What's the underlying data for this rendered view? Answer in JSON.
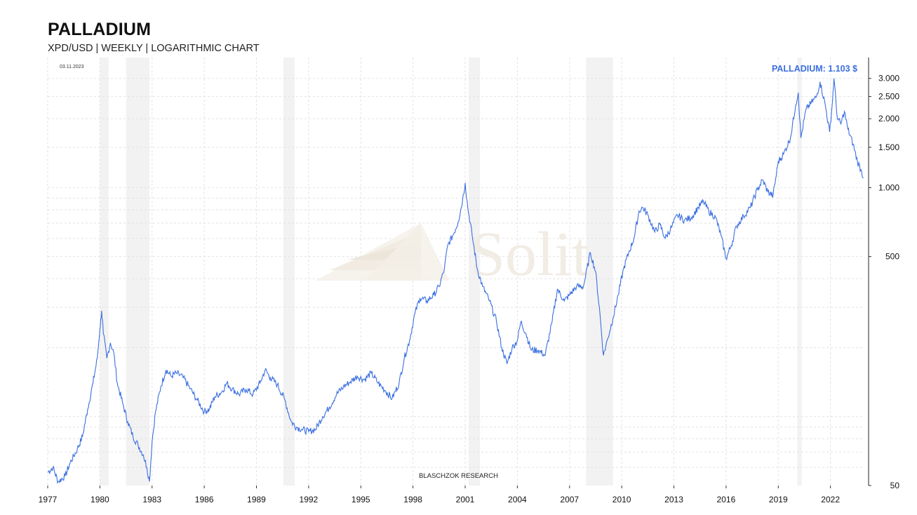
{
  "header": {
    "title": "PALLADIUM",
    "subtitle": "XPD/USD | WEEKLY | LOGARITHMIC CHART"
  },
  "date_stamp": "03.11.2023",
  "credit": "BLASCHZOK   RESEARCH",
  "watermark": "Solit",
  "colors": {
    "line": "#3b6fe0",
    "shade": "#ececec",
    "grid": "#e2e2e2"
  },
  "chart_data": {
    "type": "line",
    "scale": "log",
    "ylim": [
      50,
      3700
    ],
    "xlim": [
      1977.0,
      2023.95
    ],
    "grid": true,
    "x_ticks": [
      "1977",
      "1980",
      "1983",
      "1986",
      "1989",
      "1992",
      "1995",
      "1998",
      "2001",
      "2004",
      "2007",
      "2010",
      "2013",
      "2016",
      "2019",
      "2022"
    ],
    "y_ticks": [
      {
        "value": 3000,
        "label": "3.000"
      },
      {
        "value": 2500,
        "label": "2.500"
      },
      {
        "value": 2000,
        "label": "2.000"
      },
      {
        "value": 1500,
        "label": "1.500"
      },
      {
        "value": 1000,
        "label": "1.000"
      },
      {
        "value": 500,
        "label": "500"
      },
      {
        "value": 50,
        "label": "50"
      }
    ],
    "last_value_label": "PALLADIUM: 1.103 $",
    "recessions": [
      [
        1980.0,
        1980.5
      ],
      [
        1981.5,
        1982.85
      ],
      [
        1990.55,
        1991.2
      ],
      [
        2001.2,
        2001.85
      ],
      [
        2007.95,
        2009.5
      ],
      [
        2020.1,
        2020.35
      ]
    ],
    "series": [
      {
        "values": [
          [
            1977.0,
            57
          ],
          [
            1977.3,
            60
          ],
          [
            1977.6,
            52
          ],
          [
            1978.0,
            55
          ],
          [
            1978.3,
            63
          ],
          [
            1978.7,
            72
          ],
          [
            1979.0,
            82
          ],
          [
            1979.3,
            108
          ],
          [
            1979.6,
            140
          ],
          [
            1979.85,
            180
          ],
          [
            1980.0,
            240
          ],
          [
            1980.1,
            290
          ],
          [
            1980.2,
            230
          ],
          [
            1980.4,
            180
          ],
          [
            1980.6,
            210
          ],
          [
            1980.8,
            190
          ],
          [
            1981.0,
            140
          ],
          [
            1981.3,
            115
          ],
          [
            1981.6,
            95
          ],
          [
            1981.9,
            82
          ],
          [
            1982.2,
            75
          ],
          [
            1982.5,
            68
          ],
          [
            1982.7,
            60
          ],
          [
            1982.85,
            52
          ],
          [
            1983.0,
            78
          ],
          [
            1983.2,
            105
          ],
          [
            1983.5,
            135
          ],
          [
            1983.8,
            160
          ],
          [
            1984.1,
            150
          ],
          [
            1984.4,
            155
          ],
          [
            1984.8,
            148
          ],
          [
            1985.2,
            132
          ],
          [
            1985.6,
            118
          ],
          [
            1986.0,
            105
          ],
          [
            1986.3,
            108
          ],
          [
            1986.6,
            122
          ],
          [
            1987.0,
            128
          ],
          [
            1987.3,
            140
          ],
          [
            1987.6,
            132
          ],
          [
            1988.0,
            125
          ],
          [
            1988.4,
            132
          ],
          [
            1988.8,
            125
          ],
          [
            1989.2,
            140
          ],
          [
            1989.5,
            160
          ],
          [
            1989.8,
            148
          ],
          [
            1990.2,
            138
          ],
          [
            1990.6,
            120
          ],
          [
            1991.0,
            95
          ],
          [
            1991.3,
            90
          ],
          [
            1991.6,
            88
          ],
          [
            1992.0,
            86
          ],
          [
            1992.4,
            88
          ],
          [
            1992.8,
            100
          ],
          [
            1993.2,
            110
          ],
          [
            1993.6,
            125
          ],
          [
            1994.0,
            135
          ],
          [
            1994.4,
            142
          ],
          [
            1994.8,
            150
          ],
          [
            1995.2,
            145
          ],
          [
            1995.6,
            155
          ],
          [
            1996.0,
            140
          ],
          [
            1996.4,
            130
          ],
          [
            1996.8,
            120
          ],
          [
            1997.2,
            140
          ],
          [
            1997.5,
            180
          ],
          [
            1997.8,
            215
          ],
          [
            1998.1,
            280
          ],
          [
            1998.4,
            330
          ],
          [
            1998.8,
            320
          ],
          [
            1999.2,
            340
          ],
          [
            1999.5,
            370
          ],
          [
            1999.8,
            440
          ],
          [
            2000.0,
            560
          ],
          [
            2000.3,
            620
          ],
          [
            2000.6,
            710
          ],
          [
            2000.85,
            880
          ],
          [
            2001.0,
            1050
          ],
          [
            2001.15,
            820
          ],
          [
            2001.4,
            620
          ],
          [
            2001.7,
            440
          ],
          [
            2002.0,
            370
          ],
          [
            2002.4,
            320
          ],
          [
            2002.8,
            260
          ],
          [
            2003.1,
            200
          ],
          [
            2003.4,
            170
          ],
          [
            2003.7,
            200
          ],
          [
            2004.0,
            215
          ],
          [
            2004.2,
            260
          ],
          [
            2004.5,
            230
          ],
          [
            2004.8,
            195
          ],
          [
            2005.2,
            195
          ],
          [
            2005.6,
            185
          ],
          [
            2006.0,
            260
          ],
          [
            2006.3,
            360
          ],
          [
            2006.7,
            320
          ],
          [
            2007.0,
            340
          ],
          [
            2007.4,
            370
          ],
          [
            2007.8,
            370
          ],
          [
            2008.2,
            520
          ],
          [
            2008.5,
            430
          ],
          [
            2008.75,
            280
          ],
          [
            2008.95,
            185
          ],
          [
            2009.2,
            220
          ],
          [
            2009.5,
            270
          ],
          [
            2009.8,
            340
          ],
          [
            2010.1,
            440
          ],
          [
            2010.4,
            520
          ],
          [
            2010.7,
            600
          ],
          [
            2011.0,
            790
          ],
          [
            2011.2,
            820
          ],
          [
            2011.5,
            760
          ],
          [
            2011.9,
            640
          ],
          [
            2012.2,
            690
          ],
          [
            2012.5,
            600
          ],
          [
            2012.9,
            680
          ],
          [
            2013.2,
            760
          ],
          [
            2013.6,
            720
          ],
          [
            2014.0,
            740
          ],
          [
            2014.4,
            820
          ],
          [
            2014.7,
            870
          ],
          [
            2015.0,
            790
          ],
          [
            2015.4,
            740
          ],
          [
            2015.7,
            620
          ],
          [
            2016.0,
            490
          ],
          [
            2016.3,
            560
          ],
          [
            2016.6,
            680
          ],
          [
            2017.0,
            750
          ],
          [
            2017.4,
            820
          ],
          [
            2017.8,
            980
          ],
          [
            2018.1,
            1080
          ],
          [
            2018.4,
            960
          ],
          [
            2018.7,
            920
          ],
          [
            2019.0,
            1300
          ],
          [
            2019.3,
            1400
          ],
          [
            2019.7,
            1650
          ],
          [
            2020.0,
            2300
          ],
          [
            2020.15,
            2600
          ],
          [
            2020.3,
            1650
          ],
          [
            2020.6,
            2200
          ],
          [
            2020.9,
            2350
          ],
          [
            2021.2,
            2500
          ],
          [
            2021.4,
            2900
          ],
          [
            2021.7,
            2300
          ],
          [
            2021.95,
            1750
          ],
          [
            2022.1,
            2300
          ],
          [
            2022.2,
            3000
          ],
          [
            2022.4,
            2000
          ],
          [
            2022.6,
            1900
          ],
          [
            2022.8,
            2150
          ],
          [
            2023.0,
            1800
          ],
          [
            2023.3,
            1550
          ],
          [
            2023.55,
            1300
          ],
          [
            2023.75,
            1200
          ],
          [
            2023.9,
            1103
          ]
        ]
      }
    ]
  }
}
